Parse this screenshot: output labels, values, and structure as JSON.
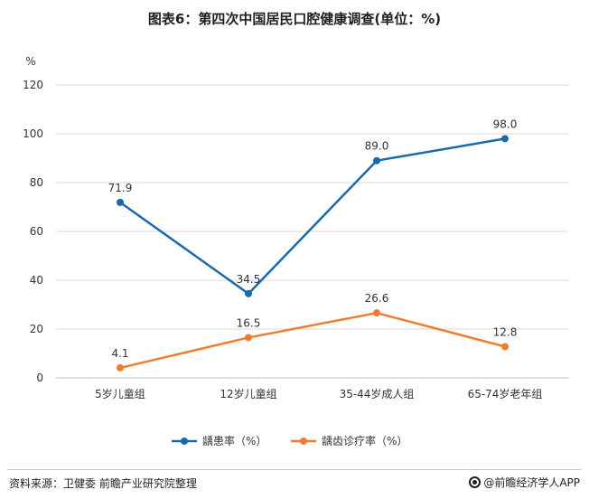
{
  "title": "图表6：第四次中国居民口腔健康调查(单位：%)",
  "source": "资料来源：卫健委 前瞻产业研究院整理",
  "brand": "@前瞻经济学人APP",
  "colors": {
    "caries": "#1a68ad",
    "treatment": "#ed7d31",
    "grid": "#d9d9d9",
    "axis": "#bfbfbf"
  },
  "chart_data": {
    "type": "line",
    "title": "图表6：第四次中国居民口腔健康调查(单位：%)",
    "ylabel": "%",
    "xlabel": "",
    "ylim": [
      0,
      120
    ],
    "yticks": [
      0,
      20,
      40,
      60,
      80,
      100,
      120
    ],
    "categories": [
      "5岁儿童组",
      "12岁儿童组",
      "35-44岁成人组",
      "65-74岁老年组"
    ],
    "series": [
      {
        "name": "龋患率（%）",
        "values": [
          71.9,
          34.5,
          89.0,
          98.0
        ],
        "labels": [
          "71.9",
          "34.5",
          "89.0",
          "98.0"
        ]
      },
      {
        "name": "龋齿诊疗率（%）",
        "values": [
          4.1,
          16.5,
          26.6,
          12.8
        ],
        "labels": [
          "4.1",
          "16.5",
          "26.6",
          "12.8"
        ]
      }
    ],
    "grid": true,
    "legend": "bottom"
  }
}
